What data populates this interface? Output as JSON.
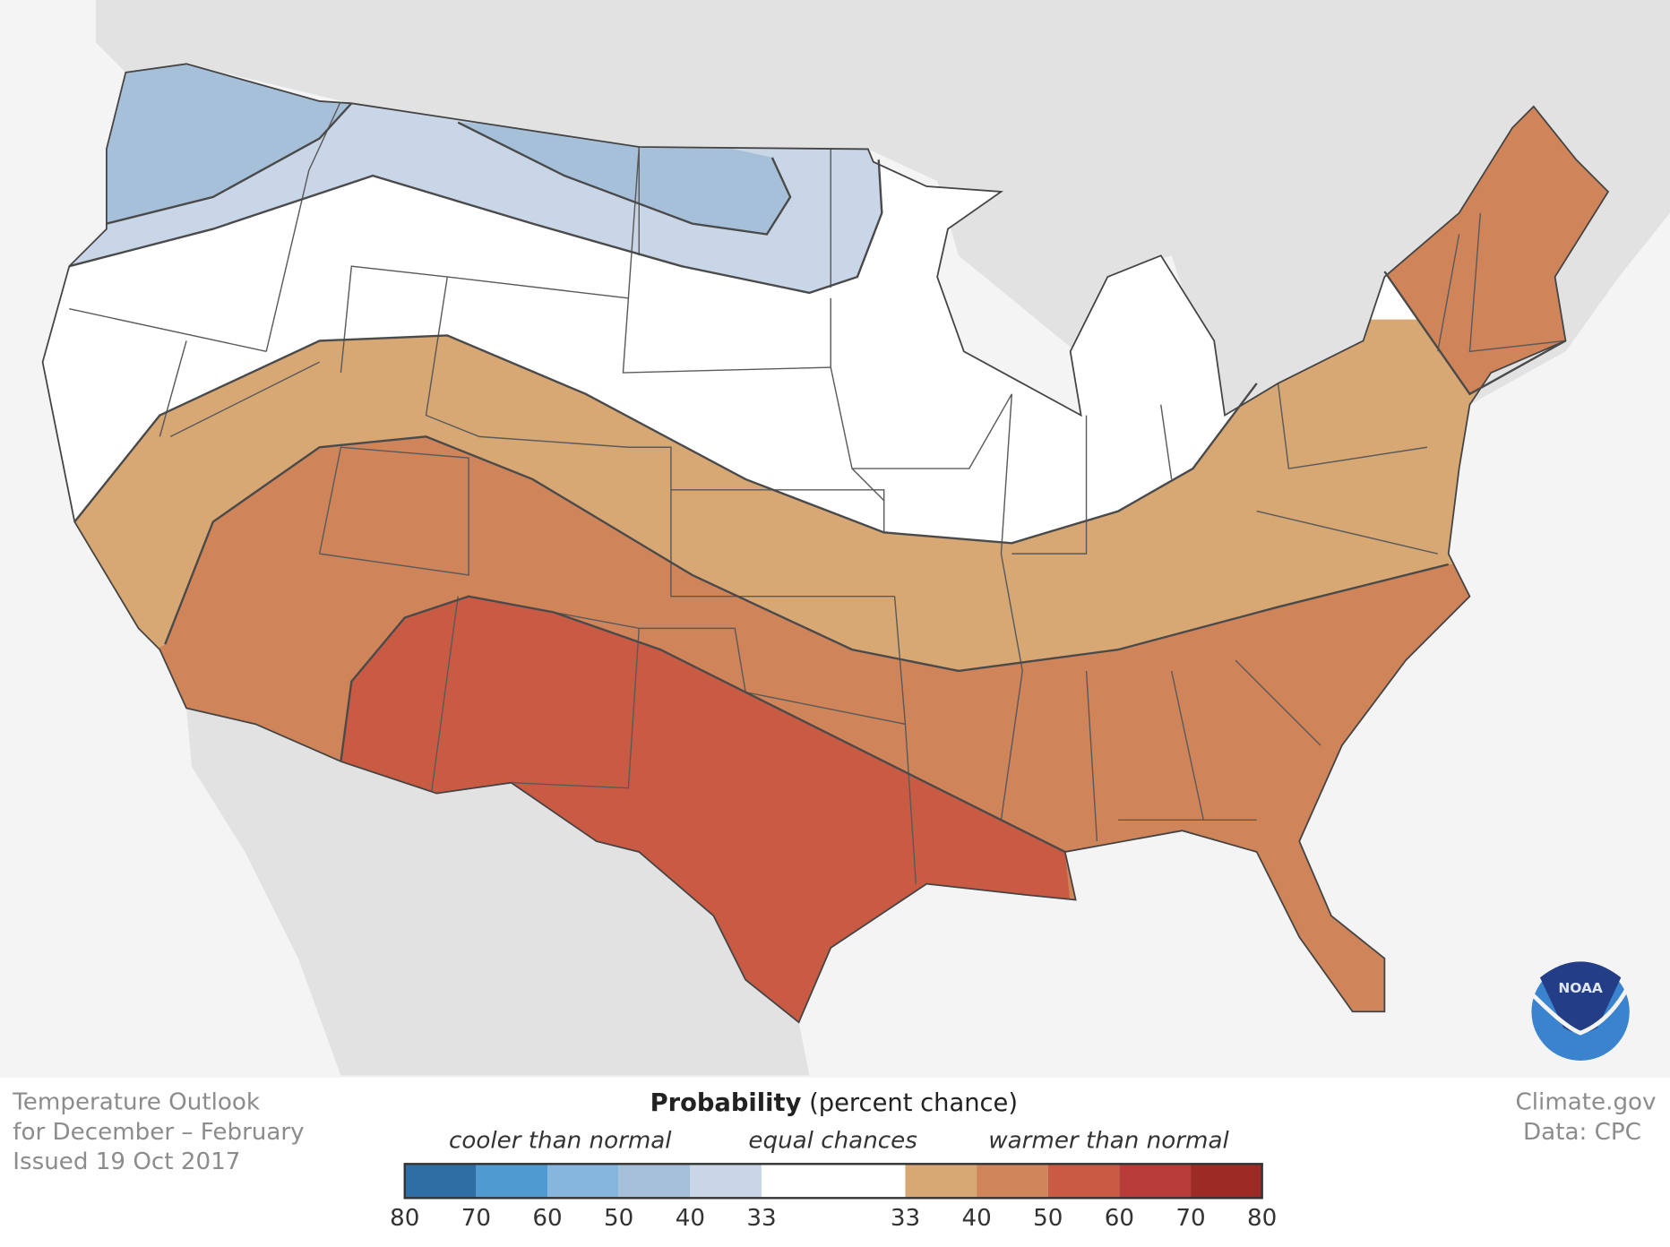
{
  "info": {
    "title_line1": "Temperature Outlook",
    "title_line2": "for December – February",
    "issued": "Issued 19 Oct 2017"
  },
  "credit": {
    "line1": "Climate.gov",
    "line2": "Data: CPC"
  },
  "legend": {
    "title_bold": "Probability",
    "title_rest": " (percent chance)",
    "cooler": "cooler than normal",
    "equal": "equal chances",
    "warmer": "warmer than normal",
    "cool_ticks": [
      "80",
      "70",
      "60",
      "50",
      "40",
      "33"
    ],
    "warm_ticks": [
      "33",
      "40",
      "50",
      "60",
      "70",
      "80"
    ],
    "cool_colors": [
      "#2e6ea4",
      "#4f9bd1",
      "#86b6dd",
      "#a7c0da",
      "#c9d6e7"
    ],
    "equal_color": "#ffffff",
    "warm_colors": [
      "#d7a774",
      "#d08459",
      "#c95b44",
      "#b73c37",
      "#9c2a25"
    ]
  },
  "map": {
    "outlook_categories": [
      "cooler 40-50%",
      "cooler 33-40%",
      "equal chances",
      "warmer 33-40%",
      "warmer 40-50%",
      "warmer 50-60%"
    ],
    "land_color": "#e2e2e2",
    "water_color": "#f4f4f4"
  },
  "logo": {
    "text": "NOAA"
  }
}
